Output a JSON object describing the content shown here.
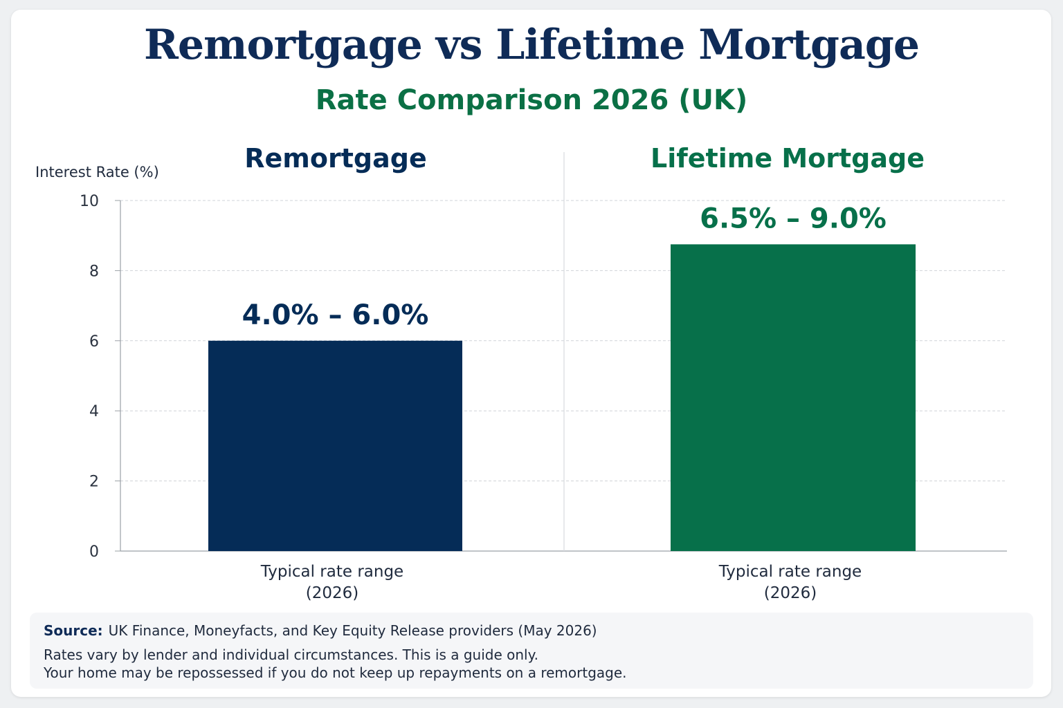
{
  "title": "Remortgage vs Lifetime Mortgage",
  "subtitle": "Rate Comparison 2026 (UK)",
  "colors": {
    "remortgage": "#052c57",
    "lifetime": "#07704a",
    "title": "#0f2b57",
    "accent_green": "#0b7045"
  },
  "chart_data": {
    "type": "bar",
    "title": "Remortgage vs Lifetime Mortgage",
    "subtitle": "Rate Comparison 2026 (UK)",
    "ylabel": "Interest Rate (%)",
    "ylim": [
      0,
      10
    ],
    "yticks": [
      0,
      2,
      4,
      6,
      8,
      10
    ],
    "grid": true,
    "categories": [
      "Typical rate range (2026)",
      "Typical rate range (2026)"
    ],
    "panels": [
      {
        "name": "Remortgage",
        "category": [
          "Typical rate range",
          "(2026)"
        ],
        "value": 6.0,
        "range_label": "4.0% – 6.0%",
        "color": "#052c57"
      },
      {
        "name": "Lifetime Mortgage",
        "category": [
          "Typical rate range",
          "(2026)"
        ],
        "value": 8.75,
        "range_label": "6.5% – 9.0%",
        "color": "#07704a"
      }
    ]
  },
  "footer": {
    "source_label": "Source:",
    "source_text": "UK Finance, Moneyfacts, and Key Equity Release providers (May 2026)",
    "note_1": "Rates vary by lender and individual circumstances. This is a guide only.",
    "note_2": "Your home may be repossessed if you do not keep up repayments on a remortgage."
  }
}
